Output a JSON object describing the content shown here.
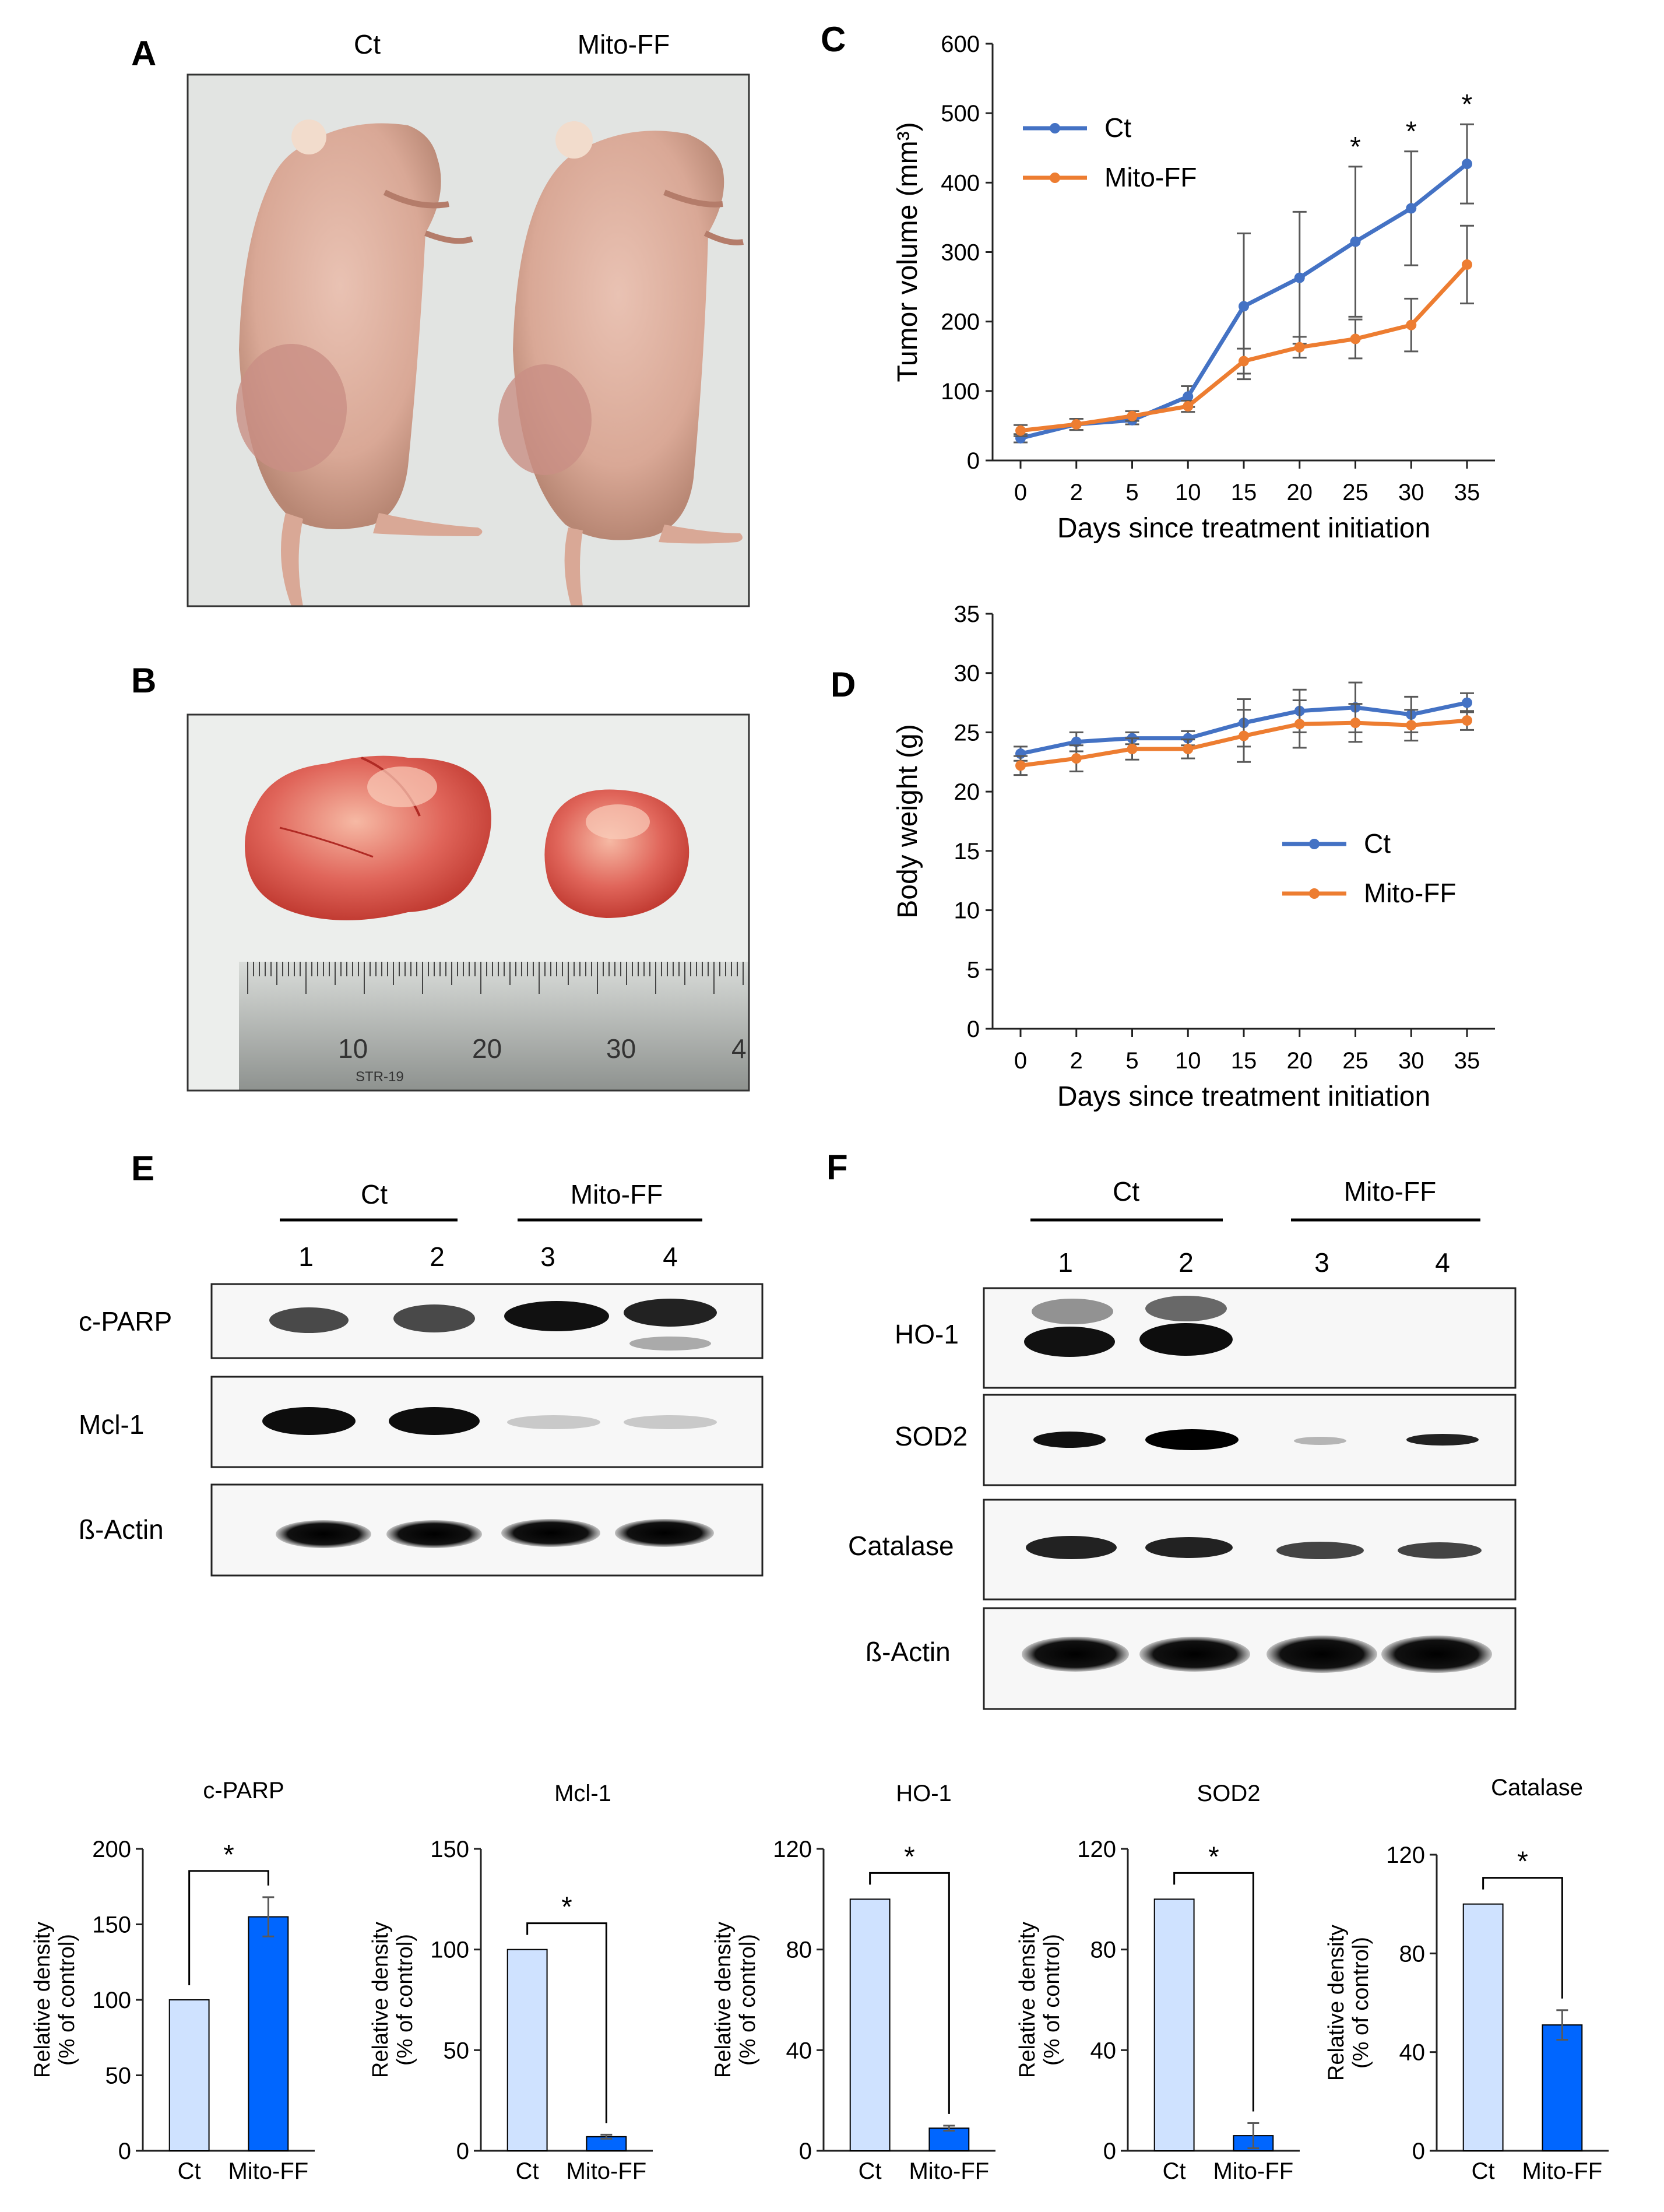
{
  "panels": {
    "A": {
      "label": "A",
      "col_labels": [
        "Ct",
        "Mito-FF"
      ]
    },
    "B": {
      "label": "B",
      "ruler_marks": [
        "10",
        "20",
        "30",
        "4"
      ],
      "ruler_brand": "STR-19"
    },
    "C": {
      "label": "C"
    },
    "D": {
      "label": "D"
    },
    "E": {
      "label": "E",
      "groups": [
        "Ct",
        "Mito-FF"
      ],
      "lanes": [
        "1",
        "2",
        "3",
        "4"
      ],
      "rows": [
        "c-PARP",
        "Mcl-1",
        "ß-Actin"
      ]
    },
    "F": {
      "label": "F",
      "groups": [
        "Ct",
        "Mito-FF"
      ],
      "lanes": [
        "1",
        "2",
        "3",
        "4"
      ],
      "rows": [
        "HO-1",
        "SOD2",
        "Catalase",
        "ß-Actin"
      ]
    }
  },
  "colors": {
    "ct_line": "#4472C4",
    "mito_line": "#ED7D31",
    "ct_bar": "#CFE2FF",
    "mito_bar": "#0066FF",
    "error": "#595959"
  },
  "chart_data": [
    {
      "id": "C",
      "type": "line",
      "xlabel": "Days since treatment initiation",
      "ylabel": "Tumor volume (mm³)",
      "categories": [
        "0",
        "2",
        "5",
        "10",
        "15",
        "20",
        "25",
        "30",
        "35"
      ],
      "ylim": [
        0,
        600
      ],
      "yticks": [
        0,
        100,
        200,
        300,
        400,
        500,
        600
      ],
      "legend": "top-left",
      "series": [
        {
          "name": "Ct",
          "values": [
            32,
            52,
            58,
            92,
            222,
            263,
            315,
            363,
            427
          ],
          "errors": [
            6,
            8,
            6,
            15,
            105,
            95,
            108,
            82,
            57
          ]
        },
        {
          "name": "Mito-FF",
          "values": [
            43,
            52,
            64,
            78,
            143,
            163,
            175,
            195,
            282
          ],
          "errors": [
            8,
            8,
            7,
            8,
            18,
            15,
            28,
            38,
            56
          ]
        }
      ],
      "significance": [
        "",
        "",
        "",
        "",
        "",
        "",
        "*",
        "*",
        "*"
      ]
    },
    {
      "id": "D",
      "type": "line",
      "xlabel": "Days since treatment initiation",
      "ylabel": "Body weight (g)",
      "categories": [
        "0",
        "2",
        "5",
        "10",
        "15",
        "20",
        "25",
        "30",
        "35"
      ],
      "ylim": [
        0,
        35
      ],
      "yticks": [
        0,
        5,
        10,
        15,
        20,
        25,
        30,
        35
      ],
      "legend": "center-right",
      "series": [
        {
          "name": "Ct",
          "values": [
            23.2,
            24.2,
            24.5,
            24.5,
            25.8,
            26.8,
            27.1,
            26.5,
            27.5
          ],
          "errors": [
            0.6,
            0.8,
            0.5,
            0.6,
            2.0,
            1.8,
            2.1,
            1.5,
            0.8
          ]
        },
        {
          "name": "Mito-FF",
          "values": [
            22.2,
            22.8,
            23.6,
            23.6,
            24.7,
            25.7,
            25.8,
            25.6,
            26.0
          ],
          "errors": [
            0.8,
            1.1,
            0.9,
            0.8,
            2.2,
            2.0,
            1.6,
            1.3,
            0.8
          ]
        }
      ]
    },
    {
      "id": "bar-cparp",
      "type": "bar",
      "title": "c-PARP",
      "ylabel": [
        "Relative density",
        "(% of control)"
      ],
      "categories": [
        "Ct",
        "Mito-FF"
      ],
      "values": [
        100,
        155
      ],
      "errors": [
        0,
        13
      ],
      "ylim": [
        0,
        200
      ],
      "yticks": [
        0,
        50,
        100,
        150,
        200
      ],
      "significance": "*"
    },
    {
      "id": "bar-mcl1",
      "type": "bar",
      "title": "Mcl-1",
      "ylabel": [
        "Relative density",
        "(% of control)"
      ],
      "categories": [
        "Ct",
        "Mito-FF"
      ],
      "values": [
        100,
        7
      ],
      "errors": [
        0,
        1
      ],
      "ylim": [
        0,
        150
      ],
      "yticks": [
        0,
        50,
        100,
        150
      ],
      "significance": "*"
    },
    {
      "id": "bar-ho1",
      "type": "bar",
      "title": "HO-1",
      "ylabel": [
        "Relative density",
        "(% of control)"
      ],
      "categories": [
        "Ct",
        "Mito-FF"
      ],
      "values": [
        100,
        9
      ],
      "errors": [
        0,
        1
      ],
      "ylim": [
        0,
        120
      ],
      "yticks": [
        0,
        40,
        80,
        120
      ],
      "significance": "*"
    },
    {
      "id": "bar-sod2",
      "type": "bar",
      "title": "SOD2",
      "ylabel": [
        "Relative density",
        "(% of control)"
      ],
      "categories": [
        "Ct",
        "Mito-FF"
      ],
      "values": [
        100,
        6
      ],
      "errors": [
        0,
        5
      ],
      "ylim": [
        0,
        120
      ],
      "yticks": [
        0,
        40,
        80,
        120
      ],
      "significance": "*"
    },
    {
      "id": "bar-catalase",
      "type": "bar",
      "title": "Catalase",
      "ylabel": [
        "Relative density",
        "(% of control)"
      ],
      "categories": [
        "Ct",
        "Mito-FF"
      ],
      "values": [
        100,
        51
      ],
      "errors": [
        0,
        6
      ],
      "ylim": [
        0,
        120
      ],
      "yticks": [
        0,
        40,
        80,
        120
      ],
      "significance": "*"
    }
  ]
}
